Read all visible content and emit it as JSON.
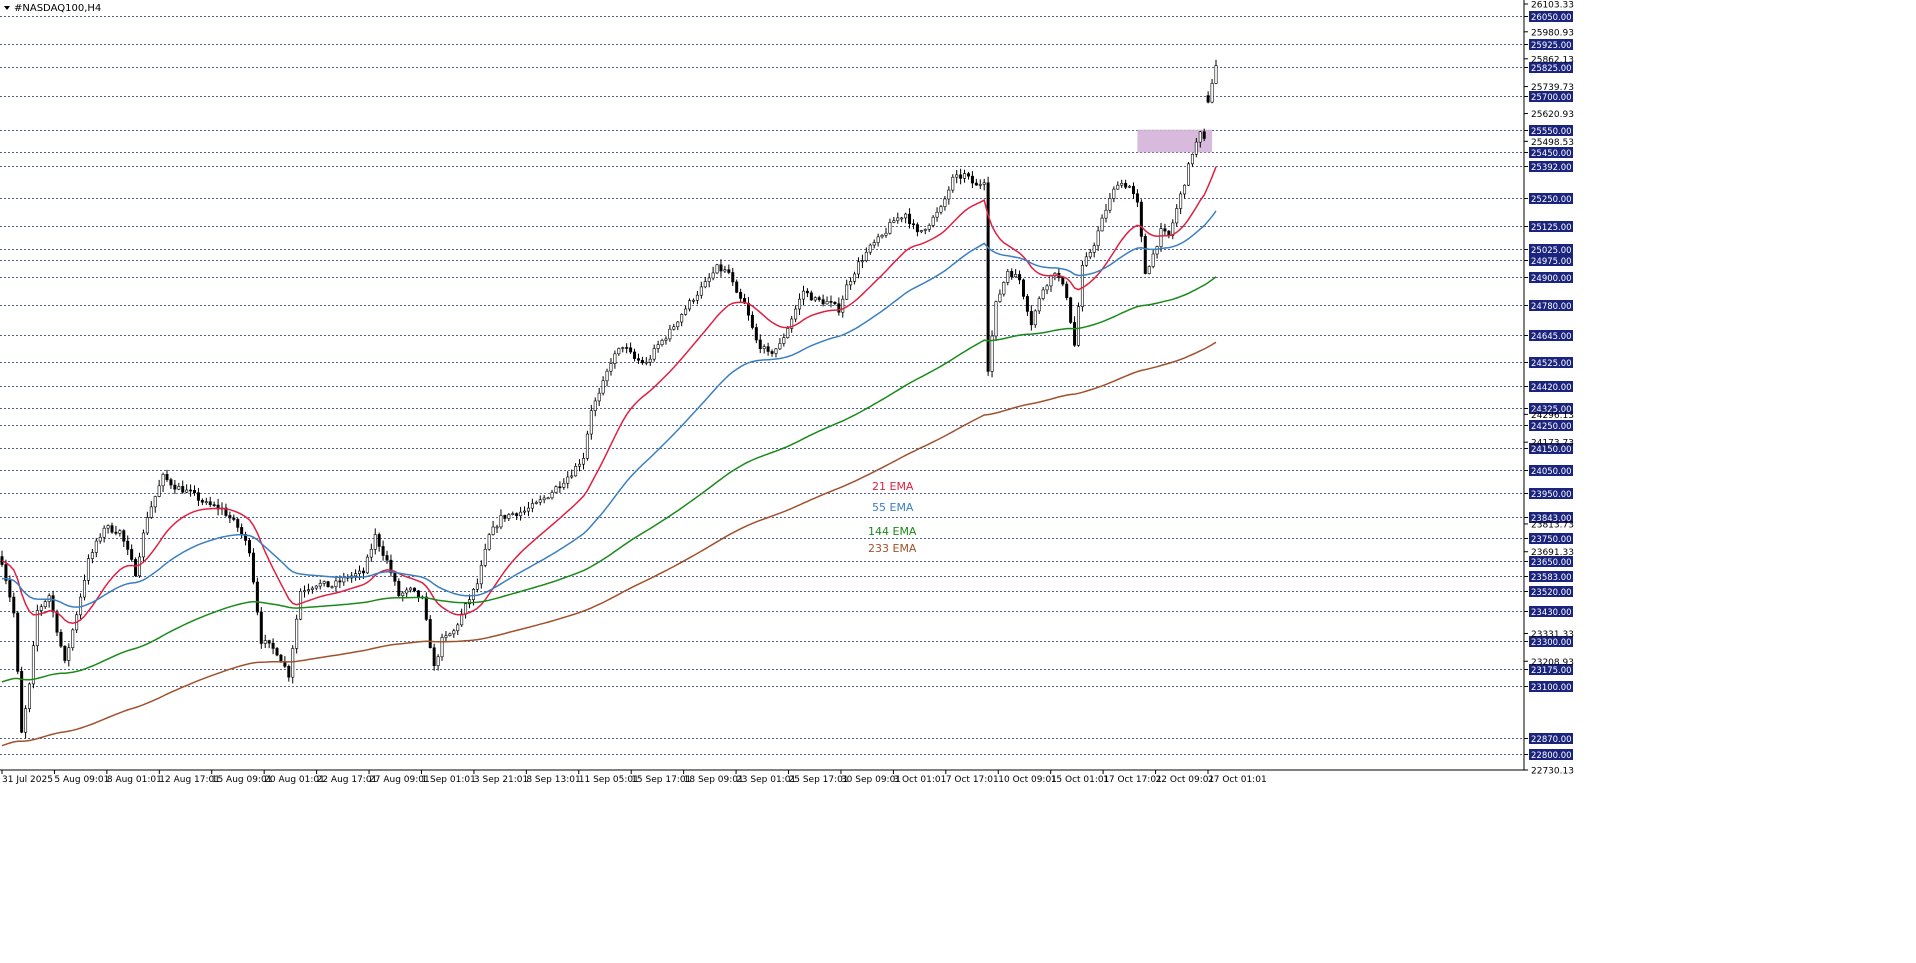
{
  "chart_title": "#NASDAQ100,H4",
  "colors": {
    "background": "#ffffff",
    "grid_dash": "#1e2a6e",
    "candle": "#000000",
    "price_tag_bg": "#1a237e",
    "zone_fill": "#d4b4d8",
    "ema21": "#e02040",
    "ema55": "#3a7fc0",
    "ema144": "#1a8a1a",
    "ema233": "#a0522d"
  },
  "chart_data": {
    "type": "candlestick",
    "symbol": "#NASDAQ100",
    "timeframe": "H4",
    "ylim": [
      22730.13,
      26103.33
    ],
    "grid": true,
    "x_tick_labels": [
      "31 Jul 2025",
      "5 Aug 09:01",
      "8 Aug 01:01",
      "12 Aug 17:01",
      "15 Aug 09:01",
      "20 Aug 01:01",
      "22 Aug 17:01",
      "27 Aug 09:01",
      "1 Sep 01:01",
      "3 Sep 21:01",
      "8 Sep 13:01",
      "11 Sep 05:01",
      "15 Sep 17:01",
      "18 Sep 09:01",
      "23 Sep 01:01",
      "25 Sep 17:01",
      "30 Sep 09:01",
      "3 Oct 01:01",
      "7 Oct 17:01",
      "10 Oct 09:01",
      "15 Oct 01:01",
      "17 Oct 17:01",
      "22 Oct 09:01",
      "27 Oct 01:01"
    ],
    "price_levels": [
      26050.0,
      25925.0,
      25825.0,
      25700.0,
      25550.0,
      25450.0,
      25392.0,
      25250.0,
      25125.0,
      25025.0,
      24975.0,
      24900.0,
      24780.0,
      24645.0,
      24525.0,
      24420.0,
      24325.0,
      24250.0,
      24150.0,
      24050.0,
      23950.0,
      23843.0,
      23750.0,
      23650.0,
      23583.0,
      23520.0,
      23430.0,
      23300.0,
      23175.0,
      23100.0,
      22870.0,
      22800.0
    ],
    "scale_labels": [
      {
        "price": 26103.33,
        "text": "26103.33"
      },
      {
        "price": 25980.93,
        "text": "25980.93"
      },
      {
        "price": 25862.13,
        "text": "25862.13"
      },
      {
        "price": 25739.73,
        "text": "25739.73"
      },
      {
        "price": 25620.93,
        "text": "25620.93"
      },
      {
        "price": 25498.53,
        "text": "25498.53"
      },
      {
        "price": 24296.13,
        "text": "24296.13"
      },
      {
        "price": 24173.73,
        "text": "24173.73"
      },
      {
        "price": 23813.73,
        "text": "23813.73"
      },
      {
        "price": 23691.33,
        "text": "23691.33"
      },
      {
        "price": 23331.33,
        "text": "23331.33"
      },
      {
        "price": 23208.93,
        "text": "23208.93"
      },
      {
        "price": 22730.13,
        "text": "22730.13"
      }
    ],
    "resistance_zone": {
      "from_price": 25450.0,
      "to_price": 25550.0,
      "from_index": 289,
      "to_index": 308
    },
    "series": [
      {
        "name": "21 EMA",
        "color": "#e02040",
        "period": 21
      },
      {
        "name": "55 EMA",
        "color": "#3a7fc0",
        "period": 55
      },
      {
        "name": "144 EMA",
        "color": "#1a8a1a",
        "period": 144
      },
      {
        "name": "233 EMA",
        "color": "#a0522d",
        "period": 233
      }
    ],
    "close_path": [
      [
        0,
        23650
      ],
      [
        3,
        23420
      ],
      [
        5,
        22890
      ],
      [
        7,
        23100
      ],
      [
        9,
        23430
      ],
      [
        12,
        23500
      ],
      [
        16,
        23200
      ],
      [
        19,
        23420
      ],
      [
        22,
        23650
      ],
      [
        26,
        23800
      ],
      [
        30,
        23780
      ],
      [
        34,
        23600
      ],
      [
        37,
        23850
      ],
      [
        41,
        24020
      ],
      [
        44,
        23980
      ],
      [
        48,
        23950
      ],
      [
        52,
        23900
      ],
      [
        56,
        23880
      ],
      [
        60,
        23800
      ],
      [
        63,
        23700
      ],
      [
        66,
        23300
      ],
      [
        70,
        23250
      ],
      [
        73,
        23150
      ],
      [
        76,
        23520
      ],
      [
        80,
        23550
      ],
      [
        84,
        23540
      ],
      [
        88,
        23580
      ],
      [
        92,
        23600
      ],
      [
        95,
        23760
      ],
      [
        98,
        23650
      ],
      [
        101,
        23500
      ],
      [
        104,
        23520
      ],
      [
        107,
        23480
      ],
      [
        110,
        23180
      ],
      [
        112,
        23300
      ],
      [
        115,
        23340
      ],
      [
        118,
        23450
      ],
      [
        121,
        23550
      ],
      [
        124,
        23760
      ],
      [
        127,
        23840
      ],
      [
        130,
        23860
      ],
      [
        133,
        23870
      ],
      [
        136,
        23900
      ],
      [
        139,
        23940
      ],
      [
        142,
        23990
      ],
      [
        145,
        24040
      ],
      [
        148,
        24110
      ],
      [
        150,
        24320
      ],
      [
        152,
        24380
      ],
      [
        155,
        24530
      ],
      [
        158,
        24600
      ],
      [
        161,
        24540
      ],
      [
        164,
        24520
      ],
      [
        167,
        24600
      ],
      [
        170,
        24660
      ],
      [
        173,
        24740
      ],
      [
        176,
        24810
      ],
      [
        179,
        24870
      ],
      [
        182,
        24940
      ],
      [
        185,
        24920
      ],
      [
        187,
        24820
      ],
      [
        189,
        24780
      ],
      [
        192,
        24620
      ],
      [
        195,
        24560
      ],
      [
        198,
        24600
      ],
      [
        201,
        24720
      ],
      [
        204,
        24840
      ],
      [
        207,
        24800
      ],
      [
        210,
        24790
      ],
      [
        213,
        24760
      ],
      [
        215,
        24860
      ],
      [
        218,
        24960
      ],
      [
        221,
        25030
      ],
      [
        224,
        25080
      ],
      [
        227,
        25150
      ],
      [
        230,
        25180
      ],
      [
        233,
        25090
      ],
      [
        236,
        25140
      ],
      [
        239,
        25200
      ],
      [
        242,
        25330
      ],
      [
        245,
        25350
      ],
      [
        248,
        25300
      ],
      [
        250,
        25330
      ],
      [
        251,
        24500
      ],
      [
        253,
        24780
      ],
      [
        256,
        24930
      ],
      [
        259,
        24890
      ],
      [
        262,
        24700
      ],
      [
        265,
        24850
      ],
      [
        268,
        24930
      ],
      [
        271,
        24820
      ],
      [
        273,
        24600
      ],
      [
        275,
        24940
      ],
      [
        278,
        25050
      ],
      [
        281,
        25200
      ],
      [
        284,
        25320
      ],
      [
        287,
        25300
      ],
      [
        289,
        25220
      ],
      [
        291,
        24920
      ],
      [
        293,
        25000
      ],
      [
        295,
        25100
      ],
      [
        297,
        25080
      ],
      [
        299,
        25200
      ],
      [
        301,
        25320
      ],
      [
        303,
        25450
      ],
      [
        305,
        25530
      ],
      [
        306,
        25500
      ],
      [
        307,
        25680
      ],
      [
        308,
        25760
      ],
      [
        309,
        25830
      ]
    ],
    "total_bars": 309
  },
  "ema_legend_labels": [
    "21 EMA",
    "55 EMA",
    "144 EMA",
    "233 EMA"
  ]
}
